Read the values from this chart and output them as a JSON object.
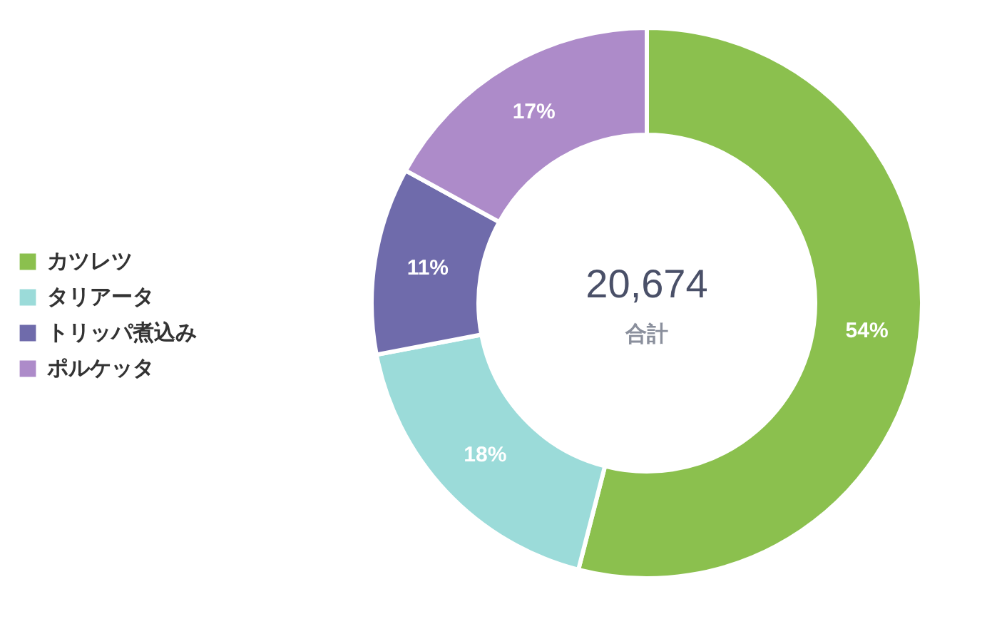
{
  "chart_data": {
    "type": "donut",
    "categories": [
      "カツレツ",
      "タリアータ",
      "トリッパ煮込み",
      "ポルケッタ"
    ],
    "values": [
      54,
      18,
      11,
      17
    ],
    "colors": [
      "#8bc04e",
      "#9bdbd9",
      "#6f6bab",
      "#ad8bc9"
    ],
    "value_labels": [
      "54%",
      "18%",
      "11%",
      "17%"
    ],
    "annotations": [
      "20,674",
      "合計"
    ],
    "legend": "left"
  }
}
